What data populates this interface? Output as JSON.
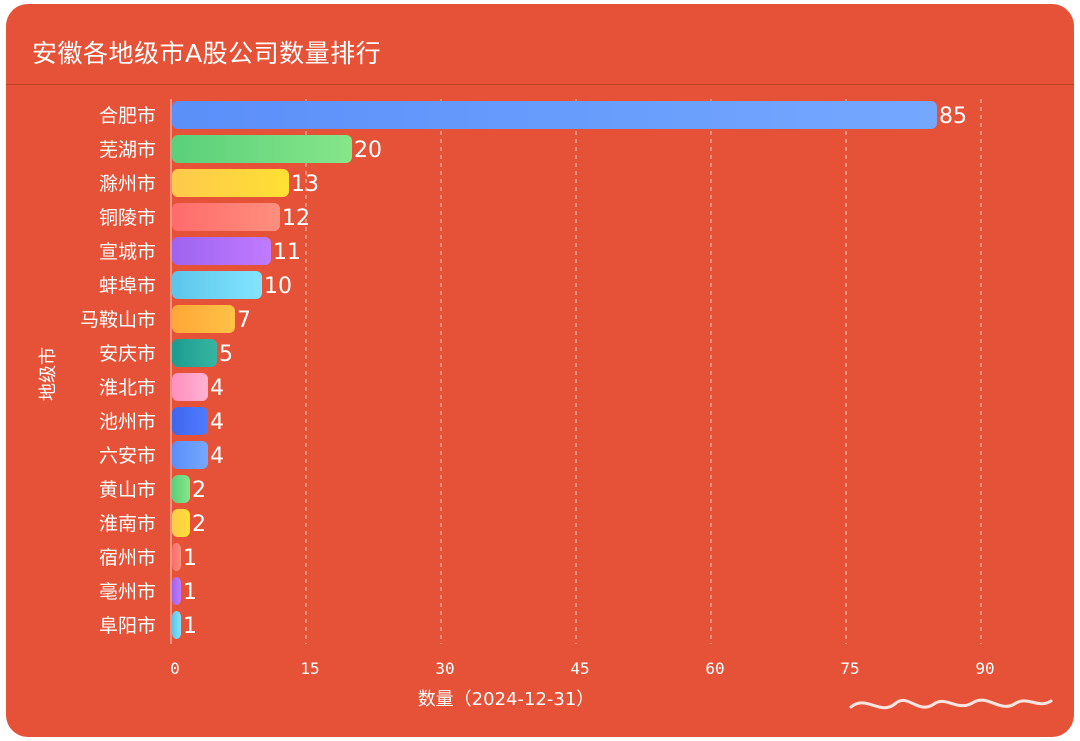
{
  "title": "安徽各地级市A股公司数量排行",
  "chart_data": {
    "type": "bar",
    "orientation": "horizontal",
    "categories": [
      "合肥市",
      "芜湖市",
      "滁州市",
      "铜陵市",
      "宣城市",
      "蚌埠市",
      "马鞍山市",
      "安庆市",
      "淮北市",
      "池州市",
      "六安市",
      "黄山市",
      "淮南市",
      "宿州市",
      "亳州市",
      "阜阳市"
    ],
    "values": [
      85,
      20,
      13,
      12,
      11,
      10,
      7,
      5,
      4,
      4,
      4,
      2,
      2,
      1,
      1,
      1
    ],
    "xlabel": "数量（2024-12-31）",
    "ylabel": "地级市",
    "xlim": [
      0,
      90
    ],
    "xticks": [
      0,
      15,
      30,
      45,
      60,
      75,
      90
    ],
    "grid": "vertical-dashed",
    "legend": "none",
    "bar_colors": [
      [
        "#5b8ff9",
        "#74a8ff"
      ],
      [
        "#5ad07a",
        "#86e68a"
      ],
      [
        "#ffc94d",
        "#ffe033"
      ],
      [
        "#ff6b6b",
        "#ff8f7d"
      ],
      [
        "#9e63f0",
        "#c07bff"
      ],
      [
        "#5bc6ea",
        "#84e4ff"
      ],
      [
        "#ffa638",
        "#ffc246"
      ],
      [
        "#1b9c90",
        "#37b5a2"
      ],
      [
        "#ff8fc0",
        "#ffb2d2"
      ],
      [
        "#3f66ee",
        "#4f7cff"
      ],
      [
        "#5b8ff9",
        "#74a8ff"
      ],
      [
        "#5ad07a",
        "#86e68a"
      ],
      [
        "#ffc94d",
        "#ffe033"
      ],
      [
        "#ff6b6b",
        "#ff8f7d"
      ],
      [
        "#9e63f0",
        "#c07bff"
      ],
      [
        "#5bc6ea",
        "#84e4ff"
      ]
    ]
  }
}
